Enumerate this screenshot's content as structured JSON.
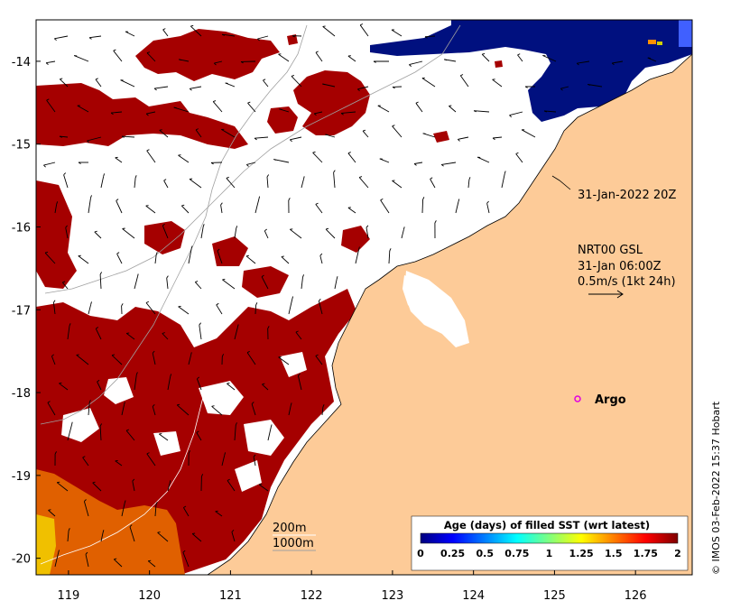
{
  "map": {
    "lon_ticks": [
      "119",
      "120",
      "121",
      "122",
      "123",
      "124",
      "125",
      "126"
    ],
    "lat_ticks": [
      "-14",
      "-15",
      "-16",
      "-17",
      "-18",
      "-19",
      "-20"
    ],
    "lon_range": [
      118.6,
      126.7
    ],
    "lat_range": [
      -20.2,
      -13.5
    ]
  },
  "annotations": {
    "track_date": "31-Jan-2022 20Z",
    "current_source": "NRT00 GSL",
    "current_time": "31-Jan 06:00Z",
    "current_scale": "0.5m/s (1kt 24h)",
    "argo_label": "Argo",
    "contour_200": "200m",
    "contour_1000": "1000m",
    "credit": "© IMOS 03-Feb-2022 15:37 Hobart"
  },
  "colorbar": {
    "title": "Age (days) of filled SST (wrt latest)",
    "ticks": [
      "0",
      "0.25",
      "0.5",
      "0.75",
      "1",
      "1.25",
      "1.5",
      "1.75",
      "2"
    ],
    "range": [
      0,
      2
    ],
    "stops": [
      "#00007f",
      "#0000ff",
      "#007fff",
      "#00ffff",
      "#7fff7f",
      "#ffff00",
      "#ff7f00",
      "#ff0000",
      "#7f0000"
    ]
  },
  "colors": {
    "land": "#fdcb98",
    "old_sst": "#a50000",
    "mid_sst": "#e06000",
    "young_sst": "#f0c000",
    "fresh_sst": "#00107f",
    "ocean": "#ffffff",
    "argo": "#e000e0"
  }
}
